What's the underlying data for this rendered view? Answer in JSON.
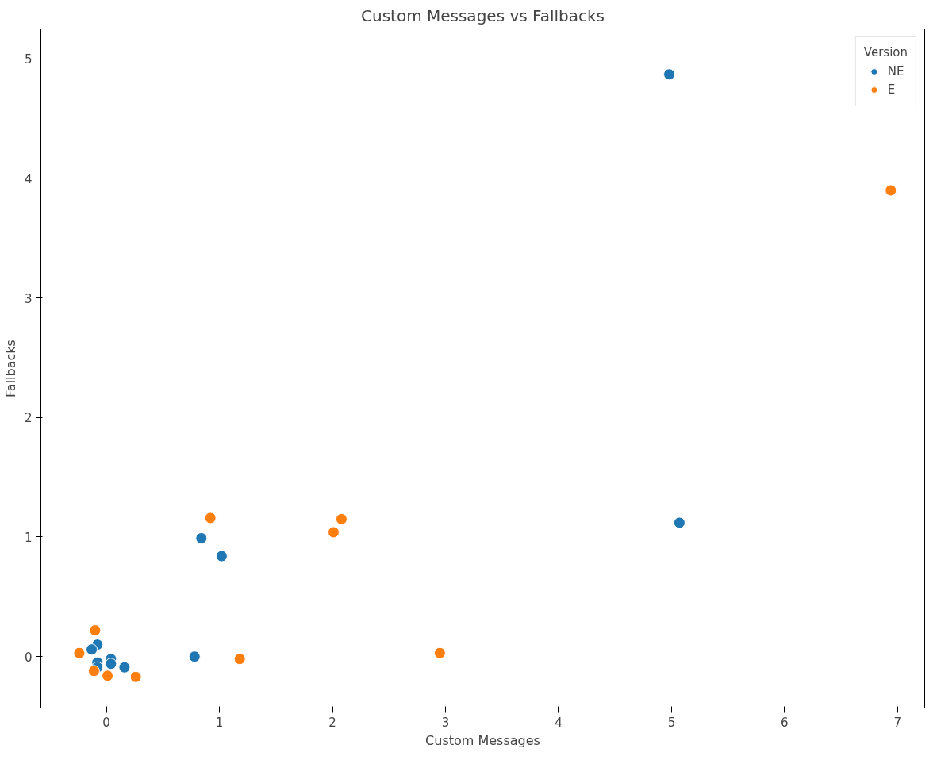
{
  "chart_data": {
    "type": "scatter",
    "title": "Custom Messages vs Fallbacks",
    "xlabel": "Custom Messages",
    "ylabel": "Fallbacks",
    "legend_title": "Version",
    "legend": "top right",
    "grid": false,
    "marker": "circle",
    "xlim": [
      -0.58,
      7.24
    ],
    "ylim": [
      -0.43,
      5.25
    ],
    "xticks": [
      0,
      1,
      2,
      3,
      4,
      5,
      6,
      7
    ],
    "yticks": [
      0,
      1,
      2,
      3,
      4,
      5
    ],
    "series": [
      {
        "name": "NE",
        "color": "#1f77b4",
        "x": [
          -0.08,
          -0.13,
          -0.08,
          -0.08,
          0.04,
          0.04,
          0.16,
          0.78,
          0.84,
          1.02,
          4.98,
          5.07
        ],
        "values": [
          0.1,
          0.06,
          -0.05,
          -0.09,
          -0.02,
          -0.06,
          -0.09,
          0.0,
          0.99,
          0.84,
          4.87,
          1.12
        ]
      },
      {
        "name": "E",
        "color": "#ff7f0e",
        "x": [
          -0.1,
          -0.24,
          -0.11,
          0.01,
          0.26,
          1.18,
          0.92,
          2.01,
          2.08,
          2.95,
          6.94
        ],
        "values": [
          0.22,
          0.03,
          -0.12,
          -0.16,
          -0.17,
          -0.02,
          1.16,
          1.04,
          1.15,
          0.03,
          3.9
        ]
      }
    ]
  }
}
